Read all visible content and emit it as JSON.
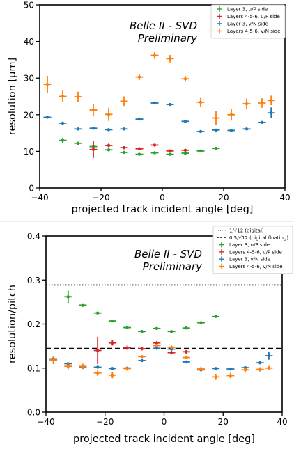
{
  "chart_data": [
    {
      "type": "scatter",
      "title": "Belle II - SVD",
      "subtitle": "Preliminary",
      "xlabel": "projected track incident angle [deg]",
      "ylabel": "resolution [μm]",
      "xlim": [
        -40,
        40
      ],
      "ylim": [
        0,
        50
      ],
      "xticks": [
        "−40",
        "−20",
        "0",
        "20",
        "40"
      ],
      "yticks": [
        "0",
        "10",
        "20",
        "30",
        "40",
        "50"
      ],
      "grid": false,
      "legend_position": "top-right",
      "series": [
        {
          "name": "Layer 3, u/P side",
          "color": "#2ca02c",
          "x": [
            -32.5,
            -27.5,
            -22.5,
            -17.5,
            -12.5,
            -7.5,
            -2.5,
            2.5,
            7.5,
            12.5,
            17.5
          ],
          "y": [
            13.0,
            12.2,
            11.3,
            10.4,
            9.7,
            9.2,
            9.6,
            9.2,
            9.5,
            10.1,
            10.8
          ],
          "yerr": [
            0.7,
            0.4,
            0.4,
            0.3,
            0.3,
            0.3,
            0.3,
            0.3,
            0.3,
            0.3,
            0.3
          ]
        },
        {
          "name": "Layers 4-5-6, u/P side",
          "color": "#d62728",
          "x": [
            -22.5,
            -17.5,
            -12.5,
            -7.5,
            -2.5,
            2.5,
            7.5
          ],
          "y": [
            10.5,
            11.6,
            11.0,
            10.7,
            11.7,
            10.1,
            10.3
          ],
          "yerr": [
            2.3,
            0.5,
            0.4,
            0.3,
            0.3,
            0.3,
            0.3
          ]
        },
        {
          "name": "Layer 3, v/N side",
          "color": "#1f77b4",
          "x": [
            -37.5,
            -32.5,
            -27.5,
            -22.5,
            -17.5,
            -12.5,
            -7.5,
            -2.5,
            2.5,
            7.5,
            12.5,
            17.5,
            22.5,
            27.5,
            32.5,
            35.5
          ],
          "y": [
            19.3,
            17.7,
            16.1,
            16.3,
            15.9,
            16.1,
            18.8,
            23.2,
            22.8,
            18.2,
            15.4,
            15.8,
            15.7,
            16.1,
            17.9,
            20.5
          ],
          "yerr": [
            0.3,
            0.3,
            0.3,
            0.3,
            0.3,
            0.3,
            0.3,
            0.3,
            0.3,
            0.3,
            0.3,
            0.3,
            0.3,
            0.3,
            0.3,
            1.5
          ]
        },
        {
          "name": "Layers 4-5-6, v/N side",
          "color": "#ff7f0e",
          "x": [
            -37.5,
            -32.5,
            -27.5,
            -22.5,
            -17.5,
            -12.5,
            -7.5,
            -2.5,
            2.5,
            7.5,
            12.5,
            17.5,
            22.5,
            27.5,
            32.5,
            35.5
          ],
          "y": [
            28.3,
            25.0,
            24.9,
            21.3,
            20.1,
            23.7,
            30.3,
            36.2,
            35.3,
            29.8,
            23.4,
            19.1,
            20.0,
            23.0,
            23.2,
            23.9
          ],
          "yerr": [
            2.3,
            1.6,
            1.4,
            1.7,
            1.8,
            1.3,
            0.8,
            1.0,
            1.0,
            0.8,
            1.2,
            1.8,
            1.6,
            1.4,
            1.3,
            1.3
          ]
        }
      ]
    },
    {
      "type": "scatter",
      "title": "Belle II - SVD",
      "subtitle": "Preliminary",
      "xlabel": "projected track incident angle [deg]",
      "ylabel": "resolution/pitch",
      "xlim": [
        -40,
        40
      ],
      "ylim": [
        0.0,
        0.4
      ],
      "xticks": [
        "−40",
        "−20",
        "0",
        "20",
        "40"
      ],
      "yticks": [
        "0.0",
        "0.1",
        "0.2",
        "0.3",
        "0.4"
      ],
      "grid": false,
      "legend_position": "top-right",
      "reference_lines": [
        {
          "name": "1/√12  (digital)",
          "y": 0.2887,
          "style": "dotted"
        },
        {
          "name": "0.5/√12  (digital floating)",
          "y": 0.1443,
          "style": "dashed"
        }
      ],
      "series": [
        {
          "name": "Layer 3, u/P side",
          "color": "#2ca02c",
          "x": [
            -32.5,
            -27.5,
            -22.5,
            -17.5,
            -12.5,
            -7.5,
            -2.5,
            2.5,
            7.5,
            12.5,
            17.5
          ],
          "y": [
            0.262,
            0.243,
            0.225,
            0.207,
            0.192,
            0.183,
            0.19,
            0.183,
            0.191,
            0.203,
            0.217
          ],
          "yerr": [
            0.014,
            0.004,
            0.003,
            0.003,
            0.003,
            0.003,
            0.003,
            0.003,
            0.003,
            0.003,
            0.003
          ]
        },
        {
          "name": "Layers 4-5-6, u/P side",
          "color": "#d62728",
          "x": [
            -22.5,
            -17.5,
            -12.5,
            -7.5,
            -2.5,
            2.5,
            7.5
          ],
          "y": [
            0.14,
            0.157,
            0.146,
            0.144,
            0.157,
            0.135,
            0.137
          ],
          "yerr": [
            0.031,
            0.006,
            0.005,
            0.004,
            0.004,
            0.004,
            0.004
          ]
        },
        {
          "name": "Layer 3, v/N side",
          "color": "#1f77b4",
          "x": [
            -37.5,
            -32.5,
            -27.5,
            -22.5,
            -17.5,
            -12.5,
            -7.5,
            -2.5,
            2.5,
            7.5,
            12.5,
            17.5,
            22.5,
            27.5,
            32.5,
            35.5
          ],
          "y": [
            0.121,
            0.11,
            0.101,
            0.102,
            0.099,
            0.1,
            0.117,
            0.145,
            0.143,
            0.114,
            0.096,
            0.099,
            0.098,
            0.101,
            0.112,
            0.128
          ],
          "yerr": [
            0.003,
            0.003,
            0.003,
            0.003,
            0.003,
            0.003,
            0.003,
            0.003,
            0.003,
            0.003,
            0.003,
            0.003,
            0.003,
            0.003,
            0.003,
            0.009
          ]
        },
        {
          "name": "Layers 4-5-6, v/N side",
          "color": "#ff7f0e",
          "x": [
            -37.5,
            -32.5,
            -27.5,
            -22.5,
            -17.5,
            -12.5,
            -7.5,
            -2.5,
            2.5,
            7.5,
            12.5,
            17.5,
            22.5,
            27.5,
            32.5,
            35.5
          ],
          "y": [
            0.118,
            0.104,
            0.104,
            0.089,
            0.084,
            0.099,
            0.126,
            0.151,
            0.147,
            0.124,
            0.098,
            0.08,
            0.083,
            0.096,
            0.097,
            0.1
          ],
          "yerr": [
            0.009,
            0.007,
            0.006,
            0.007,
            0.007,
            0.005,
            0.003,
            0.004,
            0.004,
            0.003,
            0.005,
            0.007,
            0.006,
            0.006,
            0.005,
            0.005
          ]
        }
      ]
    }
  ]
}
